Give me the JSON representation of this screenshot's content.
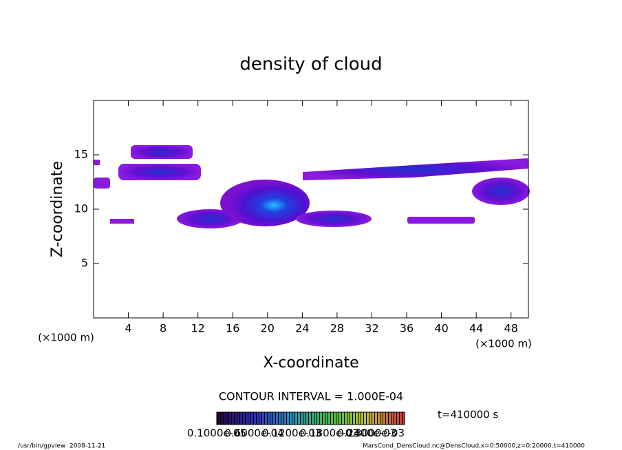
{
  "chart_data": {
    "type": "contour",
    "title": "density of cloud",
    "x_label": "X-coordinate",
    "y_label": "Z-coordinate",
    "x_unit": "(×1000 m)",
    "y_unit": "(×1000 m)",
    "xlim": [
      0,
      50
    ],
    "ylim": [
      0,
      20
    ],
    "xticks": [
      4,
      8,
      12,
      16,
      20,
      24,
      28,
      32,
      36,
      40,
      44,
      48
    ],
    "yticks": [
      5,
      10,
      15
    ],
    "contour_interval": "CONTOUR INTERVAL = 1.000E-04",
    "colorbar_labels": [
      "0.1000e-05",
      "0.6000e-04",
      "0.1200e-03",
      "0.1800e-03",
      "0.2400e-03",
      "0.3000e-03"
    ],
    "time_label": "t=410000 s"
  },
  "footer": {
    "left": "/usr/bin/gpview  2008-11-21",
    "right": "MarsCond_DensCloud.nc@DensCloud,x=0:50000,z=0:20000,t=410000"
  }
}
